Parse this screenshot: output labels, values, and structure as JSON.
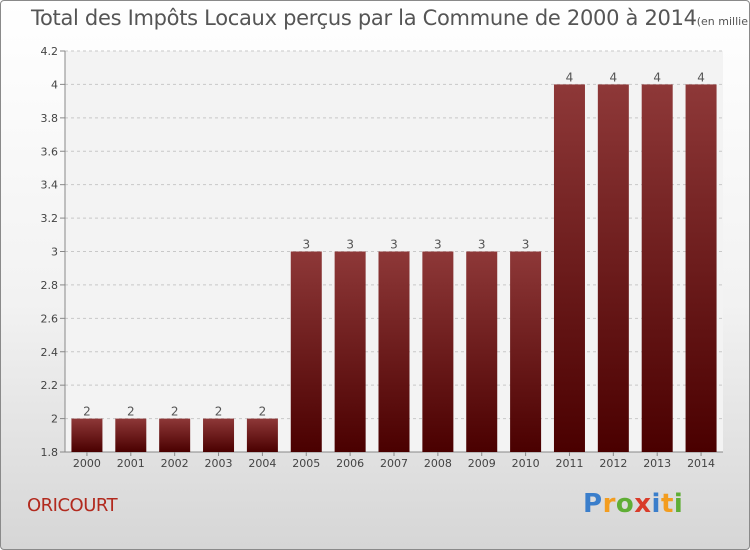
{
  "title": {
    "main": "Total des Impôts Locaux perçus par la Commune de 2000 à 2014",
    "unit": "(en milliers d'€)"
  },
  "commune": "ORICOURT",
  "logo": {
    "text": "Proxiti",
    "letters": [
      "P",
      "r",
      "o",
      "x",
      "i",
      "t",
      "i"
    ],
    "colors": [
      "#3a7ecb",
      "#f39d1f",
      "#5fae35",
      "#d93b2a",
      "#3a7ecb",
      "#f39d1f",
      "#5fae35"
    ]
  },
  "colors": {
    "bar_top": "#8e3838",
    "bar_bottom": "#4a0000",
    "grid": "#c8c8c8",
    "axis_text": "#444444",
    "plot_bg": "#f3f3f3"
  },
  "chart_data": {
    "type": "bar",
    "title": "Total des Impôts Locaux perçus par la Commune de 2000 à 2014",
    "xlabel": "",
    "ylabel": "",
    "categories": [
      "2000",
      "2001",
      "2002",
      "2003",
      "2004",
      "2005",
      "2006",
      "2007",
      "2008",
      "2009",
      "2010",
      "2011",
      "2012",
      "2013",
      "2014"
    ],
    "values": [
      2,
      2,
      2,
      2,
      2,
      3,
      3,
      3,
      3,
      3,
      3,
      4,
      4,
      4,
      4
    ],
    "value_labels": [
      "2",
      "2",
      "2",
      "2",
      "2",
      "3",
      "3",
      "3",
      "3",
      "3",
      "3",
      "4",
      "4",
      "4",
      "4"
    ],
    "ylim": [
      1.8,
      4.2
    ],
    "yticks": [
      1.8,
      2,
      2.2,
      2.4,
      2.6,
      2.8,
      3,
      3.2,
      3.4,
      3.6,
      3.8,
      4,
      4.2
    ],
    "ytick_labels": [
      "1.8",
      "2",
      "2.2",
      "2.4",
      "2.6",
      "2.8",
      "3",
      "3.2",
      "3.4",
      "3.6",
      "3.8",
      "4",
      "4.2"
    ],
    "grid": true
  }
}
